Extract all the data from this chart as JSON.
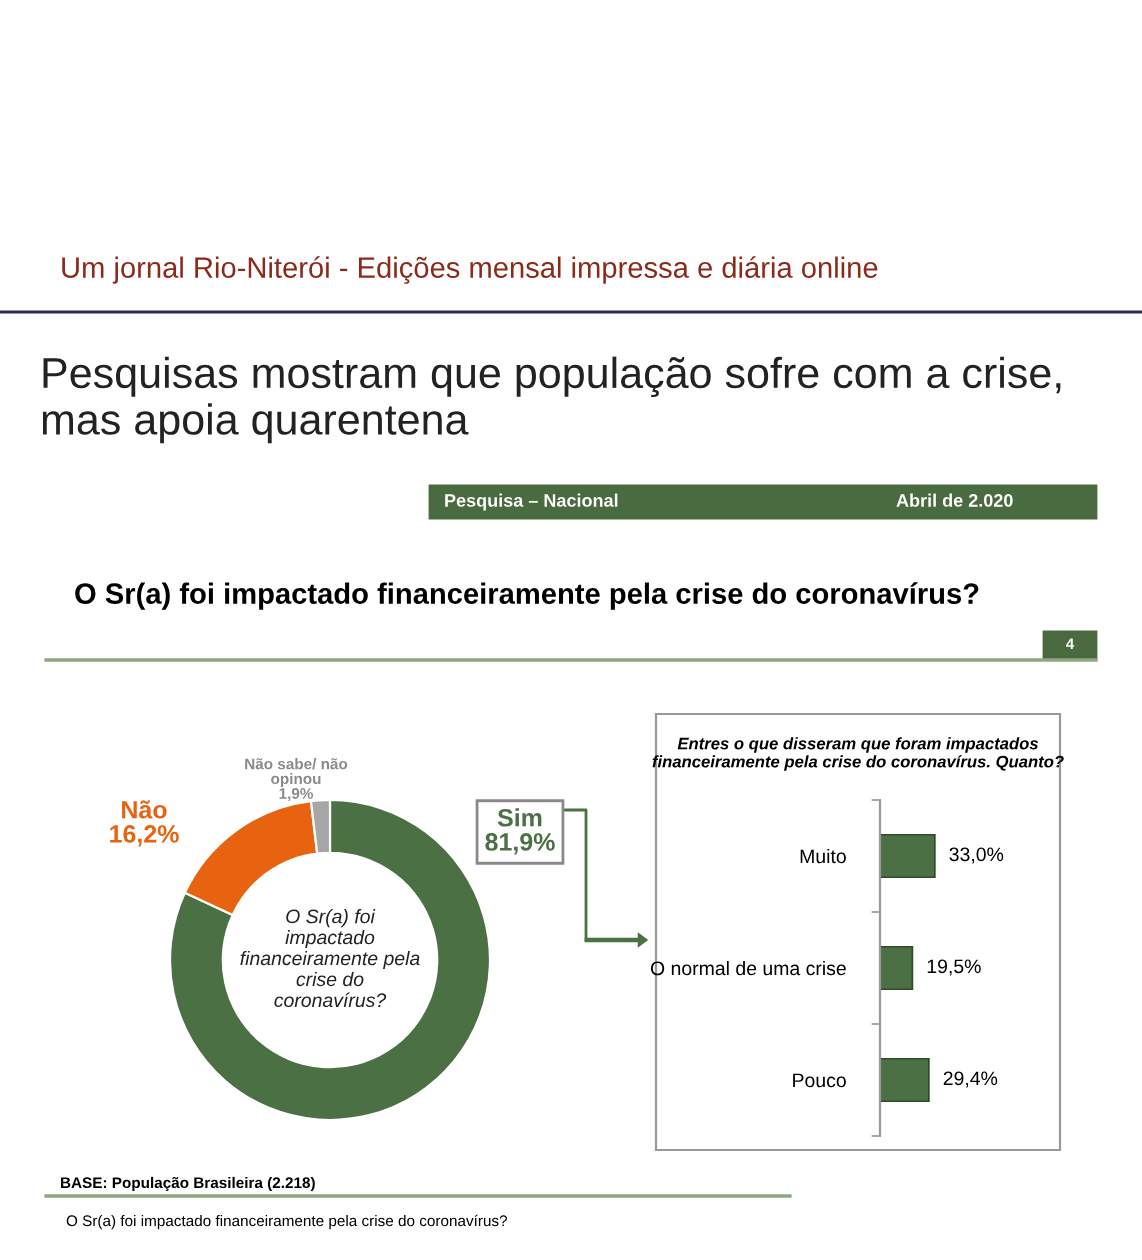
{
  "chart_data": [
    {
      "type": "donut",
      "title": "Pesquisas mostram que população sofre com a crise,\nmas apoia quarentena",
      "subtitle": "O Sr(a) foi impactado financeiramente pela crise do coronavírus?",
      "categories": [
        "Sim",
        "Não",
        "Não sabe/ não\nopinou"
      ],
      "values": [
        81.9,
        16.2,
        1.9
      ],
      "colors": [
        "#4b7044",
        "#e8630f",
        "#a6a6a6"
      ],
      "value_labels": [
        "81,9%",
        "16,2%",
        "1,9%"
      ],
      "annotations": [
        "Um jornal Rio-Niterói - Edições mensal impressa e diária online",
        "Pesquisa – Nacional",
        "Abril de 2.020",
        "4",
        "O Sr(a) foi\nimpactado\nfinanceiramente pela\ncrise do\ncoronavírus?",
        "BASE: População Brasileira (2.218)",
        "O Sr(a) foi impactado financeiramente pela crise do coronavírus?"
      ]
    },
    {
      "type": "bar",
      "orientation": "horizontal",
      "title": "Entres o que disseram que foram impactados\nfinanceiramente pela crise do coronavírus. Quanto?",
      "categories": [
        "Muito",
        "O normal de uma crise",
        "Pouco"
      ],
      "values": [
        33.0,
        19.5,
        29.4
      ],
      "color": "#4b7044",
      "value_labels": [
        "33,0%",
        "19,5%",
        "29,4%"
      ]
    }
  ]
}
